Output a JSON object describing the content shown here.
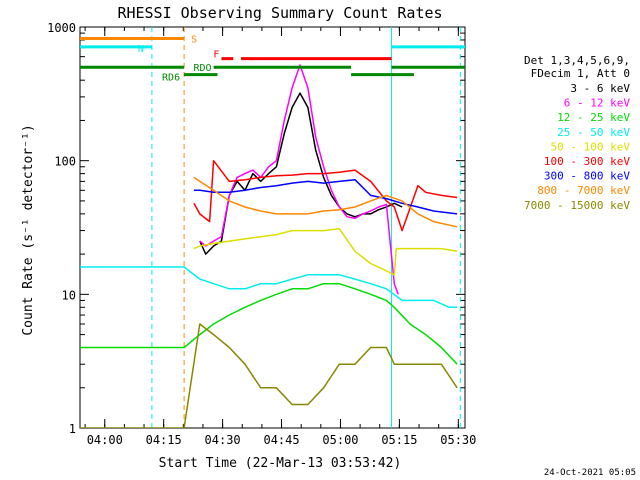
{
  "chart_data": {
    "type": "line",
    "title": "RHESSI Observing Summary Count Rates",
    "xlabel": "Start Time (22-Mar-13 03:53:42)",
    "ylabel": "Count Rate (s⁻¹ detector⁻¹)",
    "x_range_minutes_after_start": [
      0,
      98
    ],
    "x_tick_times": [
      "04:00",
      "04:15",
      "04:30",
      "04:45",
      "05:00",
      "05:15",
      "05:30"
    ],
    "x_tick_minutes": [
      6.3,
      21.3,
      36.3,
      51.3,
      66.3,
      81.3,
      96.3
    ],
    "y_scale": "log",
    "ylim": [
      1,
      1000
    ],
    "y_tick_labels": [
      "1",
      "10",
      "100",
      "1000"
    ],
    "y_tick_values": [
      1,
      10,
      100,
      1000
    ],
    "legend_header": [
      "Det 1,3,4,5,6,9,",
      "FDecim 1, Att 0"
    ],
    "legend_placement": "right",
    "series": [
      {
        "name": "3 - 6 keV",
        "color": "#000000",
        "x": [
          30.5,
          32,
          34,
          36,
          38,
          40,
          42,
          44,
          46,
          48,
          50,
          52,
          54,
          56,
          58,
          60,
          62,
          64,
          66,
          68,
          70,
          72,
          74,
          76,
          78,
          80,
          82
        ],
        "values": [
          25,
          20,
          23,
          25,
          55,
          70,
          60,
          80,
          70,
          80,
          90,
          160,
          250,
          320,
          250,
          120,
          75,
          55,
          45,
          40,
          38,
          40,
          40,
          43,
          45,
          48,
          45
        ]
      },
      {
        "name": "6 - 12 keV",
        "color": "#ff00ff",
        "x": [
          30.5,
          32,
          34,
          36,
          38,
          40,
          42,
          44,
          46,
          48,
          50,
          52,
          54,
          56,
          58,
          60,
          62,
          64,
          66,
          68,
          70,
          72,
          74,
          76,
          78,
          80,
          81
        ],
        "values": [
          25,
          23,
          25,
          27,
          55,
          75,
          80,
          85,
          75,
          90,
          100,
          200,
          350,
          520,
          350,
          150,
          90,
          60,
          45,
          38,
          37,
          40,
          42,
          45,
          47,
          12,
          10
        ]
      },
      {
        "name": "12 - 25 keV",
        "color": "#00dd00",
        "x": [
          0,
          26.5,
          30.5,
          34,
          38,
          42,
          46,
          50,
          54,
          58,
          62,
          66,
          70,
          74,
          78,
          80,
          84,
          88,
          92,
          96
        ],
        "values": [
          4,
          4,
          5,
          6,
          7,
          8,
          9,
          10,
          11,
          11,
          12,
          12,
          11,
          10,
          9,
          8,
          6,
          5,
          4,
          3
        ]
      },
      {
        "name": "25 - 50 keV",
        "color": "#00eeee",
        "x": [
          0,
          26.5,
          30.5,
          34,
          38,
          42,
          46,
          50,
          54,
          58,
          62,
          66,
          70,
          74,
          78,
          82,
          86,
          90,
          94,
          96
        ],
        "values": [
          16,
          16,
          13,
          12,
          11,
          11,
          12,
          12,
          13,
          14,
          14,
          14,
          13,
          12,
          11,
          9,
          9,
          9,
          8,
          8
        ]
      },
      {
        "name": "50 - 100 keV",
        "color": "#dddd00",
        "x": [
          29,
          30.5,
          34,
          38,
          42,
          46,
          50,
          54,
          58,
          62,
          66,
          70,
          74,
          78,
          80,
          80.5,
          84,
          88,
          92,
          96
        ],
        "values": [
          22,
          23,
          24,
          25,
          26,
          27,
          28,
          30,
          30,
          30,
          31,
          21,
          17,
          15,
          14,
          22,
          22,
          22,
          22,
          21
        ]
      },
      {
        "name": "100 - 300 keV",
        "color": "#ff0000",
        "x": [
          29,
          30.5,
          33,
          34,
          38,
          42,
          46,
          50,
          54,
          58,
          62,
          66,
          70,
          74,
          78,
          80,
          82,
          86,
          88,
          92,
          96
        ],
        "values": [
          48,
          40,
          35,
          100,
          70,
          72,
          75,
          77,
          78,
          80,
          80,
          82,
          85,
          70,
          50,
          45,
          30,
          65,
          58,
          55,
          53
        ]
      },
      {
        "name": "300 - 800 keV",
        "color": "#0000ff",
        "x": [
          29,
          30.5,
          34,
          38,
          42,
          46,
          50,
          54,
          58,
          62,
          66,
          70,
          74,
          78,
          82,
          86,
          90,
          96
        ],
        "values": [
          60,
          60,
          58,
          58,
          60,
          63,
          65,
          68,
          70,
          68,
          70,
          72,
          55,
          52,
          48,
          45,
          42,
          40
        ]
      },
      {
        "name": "800 - 7000 keV",
        "color": "#ff8800",
        "x": [
          29,
          30.5,
          34,
          38,
          42,
          46,
          50,
          54,
          58,
          62,
          66,
          70,
          74,
          78,
          82,
          86,
          90,
          96
        ],
        "values": [
          75,
          70,
          60,
          50,
          45,
          42,
          40,
          40,
          40,
          42,
          43,
          45,
          50,
          55,
          50,
          40,
          35,
          32
        ]
      },
      {
        "name": "7000 - 15000 keV",
        "color": "#888800",
        "x": [
          0,
          26.5,
          30.5,
          34,
          38,
          42,
          46,
          50,
          54,
          58,
          62,
          66,
          70,
          74,
          78,
          80,
          84,
          88,
          92,
          96
        ],
        "values": [
          1,
          1,
          6,
          5,
          4,
          3,
          2,
          2,
          1.5,
          1.5,
          2,
          3,
          3,
          4,
          4,
          3,
          3,
          3,
          3,
          2
        ]
      }
    ],
    "flag_bars": [
      {
        "label": "S",
        "color": "#ff8800",
        "y": 820,
        "segments": [
          [
            0,
            26.5
          ]
        ]
      },
      {
        "label": "N",
        "color": "#00eeee",
        "y": 710,
        "segments": [
          [
            0,
            18.3
          ],
          [
            79.3,
            98
          ]
        ]
      },
      {
        "label": "F",
        "color": "#ff0000",
        "y": 580,
        "segments": [
          [
            36,
            39
          ],
          [
            41,
            79.3
          ]
        ]
      },
      {
        "label": "RDO",
        "color": "#008800",
        "y": 500,
        "segments": [
          [
            0,
            26.5
          ],
          [
            34,
            69
          ],
          [
            79.3,
            98
          ]
        ]
      },
      {
        "label": "RD6",
        "color": "#008800",
        "y": 440,
        "segments": [
          [
            26.5,
            35
          ],
          [
            69,
            85
          ]
        ]
      }
    ],
    "vertical_markers": [
      {
        "x": 18.3,
        "color": "#00eeee",
        "style": "dashed"
      },
      {
        "x": 26.5,
        "color": "#ff8800",
        "style": "dashed"
      },
      {
        "x": 79.3,
        "color": "#00eeee",
        "style": "solid"
      },
      {
        "x": 96.8,
        "color": "#00eeee",
        "style": "dashed"
      }
    ],
    "grid": false
  },
  "footer": {
    "timestamp": "24-Oct-2021 05:05"
  }
}
